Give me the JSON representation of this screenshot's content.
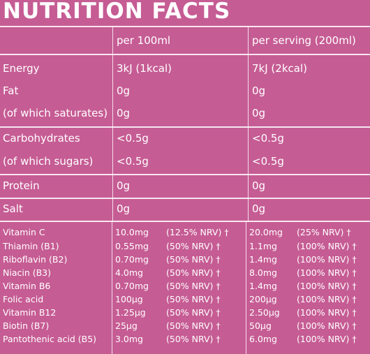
{
  "title": "NUTRITION FACTS",
  "headers": {
    "col1": "per 100ml",
    "col2": "per serving (200ml)"
  },
  "rows": [
    {
      "label": "Energy",
      "v1": "3kJ (1kcal)",
      "v2": "7kJ (2kcal)"
    },
    {
      "label": "Fat",
      "v1": "0g",
      "v2": "0g"
    },
    {
      "label": "(of which saturates)",
      "v1": "0g",
      "v2": "0g"
    },
    {
      "label": "Carbohydrates",
      "v1": "<0.5g",
      "v2": "<0.5g"
    },
    {
      "label": "(of which sugars)",
      "v1": "<0.5g",
      "v2": "<0.5g"
    },
    {
      "label": "Protein",
      "v1": "0g",
      "v2": "0g"
    },
    {
      "label": "Salt",
      "v1": "0g",
      "v2": "0g"
    }
  ],
  "vitamins": [
    {
      "name": "Vitamin C",
      "a1": "10.0mg",
      "n1": "(12.5% NRV) †",
      "a2": "20.0mg",
      "n2": "(25% NRV) †"
    },
    {
      "name": "Thiamin (B1)",
      "a1": "0.55mg",
      "n1": "(50% NRV) †",
      "a2": "1.1mg",
      "n2": "(100% NRV) †"
    },
    {
      "name": "Riboflavin (B2)",
      "a1": "0.70mg",
      "n1": "(50% NRV) †",
      "a2": "1.4mg",
      "n2": "(100% NRV) †"
    },
    {
      "name": "Niacin (B3)",
      "a1": "4.0mg",
      "n1": "(50% NRV) †",
      "a2": "8.0mg",
      "n2": "(100% NRV) †"
    },
    {
      "name": "Vitamin B6",
      "a1": "0.70mg",
      "n1": "(50% NRV) †",
      "a2": "1.4mg",
      "n2": "(100% NRV) †"
    },
    {
      "name": "Folic acid",
      "a1": "100µg",
      "n1": "(50% NRV) †",
      "a2": "200µg",
      "n2": "(100% NRV) †"
    },
    {
      "name": "Vitamin B12",
      "a1": "1.25µg",
      "n1": "(50% NRV) †",
      "a2": "2.50µg",
      "n2": "(100% NRV) †"
    },
    {
      "name": "Biotin (B7)",
      "a1": "25µg",
      "n1": "(50% NRV) †",
      "a2": "50µg",
      "n2": "(100% NRV) †"
    },
    {
      "name": "Pantothenic acid (B5)",
      "a1": "3.0mg",
      "n1": "(50% NRV) †",
      "a2": "6.0mg",
      "n2": "(100% NRV) †"
    }
  ],
  "colors": {
    "background": "#c65c94",
    "text": "#ffffff"
  }
}
